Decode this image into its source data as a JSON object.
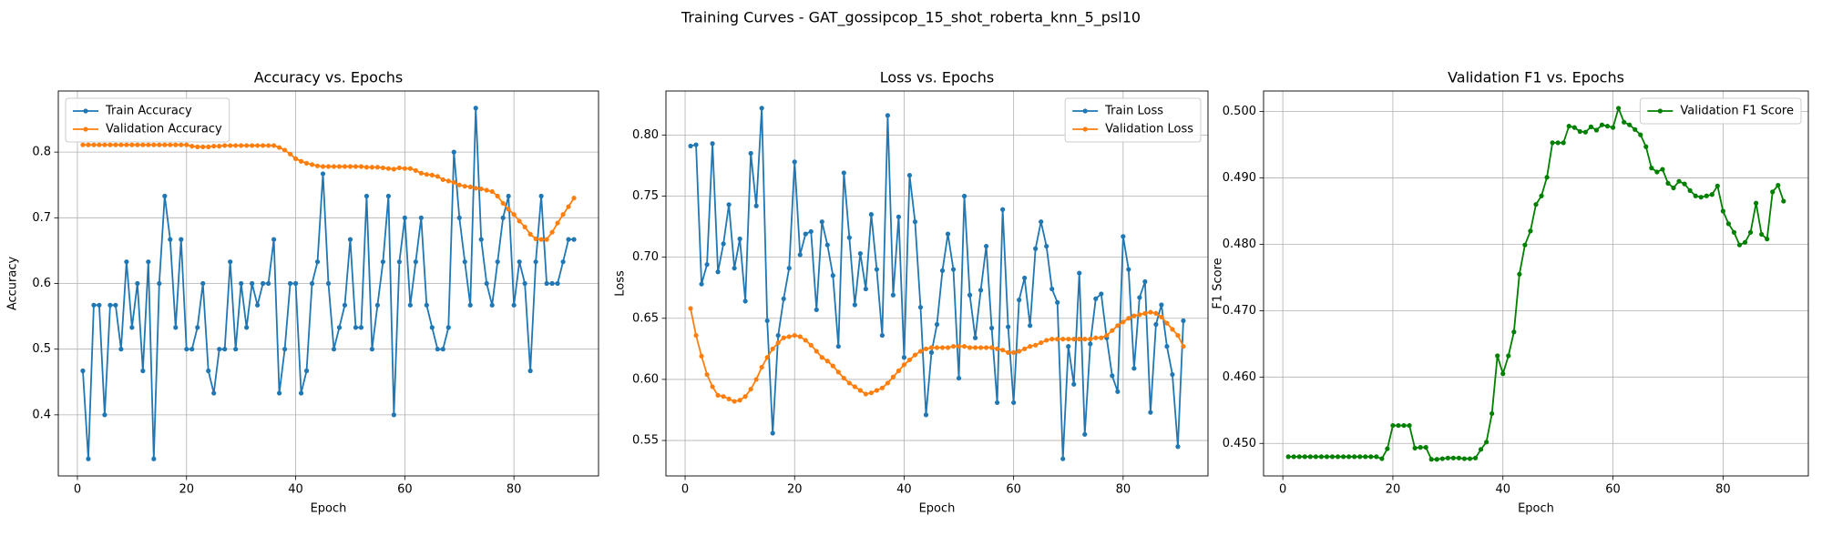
{
  "title": "Training Curves - GAT_gossipcop_15_shot_roberta_knn_5_psl10",
  "chart_data": [
    {
      "type": "line",
      "title": "Accuracy vs. Epochs",
      "xlabel": "Epoch",
      "ylabel": "Accuracy",
      "x": [
        1,
        2,
        3,
        4,
        5,
        6,
        7,
        8,
        9,
        10,
        11,
        12,
        13,
        14,
        15,
        16,
        17,
        18,
        19,
        20,
        21,
        22,
        23,
        24,
        25,
        26,
        27,
        28,
        29,
        30,
        31,
        32,
        33,
        34,
        35,
        36,
        37,
        38,
        39,
        40,
        41,
        42,
        43,
        44,
        45,
        46,
        47,
        48,
        49,
        50,
        51,
        52,
        53,
        54,
        55,
        56,
        57,
        58,
        59,
        60,
        61,
        62,
        63,
        64,
        65,
        66,
        67,
        68,
        69,
        70,
        71,
        72,
        73,
        74,
        75,
        76,
        77,
        78,
        79,
        80,
        81,
        82,
        83,
        84,
        85,
        86,
        87,
        88,
        89,
        90,
        91
      ],
      "xlim": [
        -3.5,
        95.5
      ],
      "xticks": [
        0,
        20,
        40,
        60,
        80
      ],
      "ylim": [
        0.307,
        0.893
      ],
      "yticks": [
        0.4,
        0.5,
        0.6,
        0.7,
        0.8
      ],
      "grid": true,
      "legend": "upper left",
      "series": [
        {
          "name": "Train Accuracy",
          "color": "#1f77b4",
          "values": [
            0.467,
            0.333,
            0.567,
            0.567,
            0.4,
            0.567,
            0.567,
            0.5,
            0.633,
            0.533,
            0.6,
            0.467,
            0.633,
            0.333,
            0.6,
            0.733,
            0.667,
            0.533,
            0.667,
            0.5,
            0.5,
            0.533,
            0.6,
            0.467,
            0.433,
            0.5,
            0.5,
            0.633,
            0.5,
            0.6,
            0.533,
            0.6,
            0.567,
            0.6,
            0.6,
            0.667,
            0.433,
            0.5,
            0.6,
            0.6,
            0.433,
            0.467,
            0.6,
            0.633,
            0.767,
            0.6,
            0.5,
            0.533,
            0.567,
            0.667,
            0.533,
            0.533,
            0.733,
            0.5,
            0.567,
            0.633,
            0.733,
            0.4,
            0.633,
            0.7,
            0.567,
            0.633,
            0.7,
            0.567,
            0.533,
            0.5,
            0.5,
            0.533,
            0.8,
            0.7,
            0.633,
            0.567,
            0.867,
            0.667,
            0.6,
            0.567,
            0.633,
            0.7,
            0.733,
            0.567,
            0.633,
            0.6,
            0.467,
            0.633,
            0.733,
            0.6,
            0.6,
            0.6,
            0.633,
            0.667,
            0.667
          ]
        },
        {
          "name": "Validation Accuracy",
          "color": "#ff7f0e",
          "values": [
            0.811,
            0.811,
            0.811,
            0.811,
            0.811,
            0.811,
            0.811,
            0.811,
            0.811,
            0.811,
            0.811,
            0.811,
            0.811,
            0.811,
            0.811,
            0.811,
            0.811,
            0.811,
            0.811,
            0.811,
            0.809,
            0.808,
            0.808,
            0.808,
            0.809,
            0.809,
            0.81,
            0.81,
            0.81,
            0.81,
            0.81,
            0.81,
            0.81,
            0.81,
            0.81,
            0.81,
            0.807,
            0.803,
            0.797,
            0.79,
            0.786,
            0.783,
            0.781,
            0.779,
            0.778,
            0.778,
            0.778,
            0.778,
            0.778,
            0.778,
            0.778,
            0.778,
            0.777,
            0.777,
            0.777,
            0.776,
            0.775,
            0.774,
            0.776,
            0.775,
            0.775,
            0.772,
            0.768,
            0.766,
            0.765,
            0.763,
            0.758,
            0.756,
            0.754,
            0.75,
            0.748,
            0.747,
            0.745,
            0.744,
            0.742,
            0.74,
            0.733,
            0.722,
            0.713,
            0.705,
            0.695,
            0.686,
            0.675,
            0.668,
            0.667,
            0.667,
            0.678,
            0.692,
            0.705,
            0.717,
            0.73
          ]
        }
      ]
    },
    {
      "type": "line",
      "title": "Loss vs. Epochs",
      "xlabel": "Epoch",
      "ylabel": "Loss",
      "x": [
        1,
        2,
        3,
        4,
        5,
        6,
        7,
        8,
        9,
        10,
        11,
        12,
        13,
        14,
        15,
        16,
        17,
        18,
        19,
        20,
        21,
        22,
        23,
        24,
        25,
        26,
        27,
        28,
        29,
        30,
        31,
        32,
        33,
        34,
        35,
        36,
        37,
        38,
        39,
        40,
        41,
        42,
        43,
        44,
        45,
        46,
        47,
        48,
        49,
        50,
        51,
        52,
        53,
        54,
        55,
        56,
        57,
        58,
        59,
        60,
        61,
        62,
        63,
        64,
        65,
        66,
        67,
        68,
        69,
        70,
        71,
        72,
        73,
        74,
        75,
        76,
        77,
        78,
        79,
        80,
        81,
        82,
        83,
        84,
        85,
        86,
        87,
        88,
        89,
        90,
        91
      ],
      "xlim": [
        -3.5,
        95.5
      ],
      "xticks": [
        0,
        20,
        40,
        60,
        80
      ],
      "ylim": [
        0.521,
        0.836
      ],
      "yticks": [
        0.55,
        {
          "value": 0.6,
          "label": "0.60"
        },
        0.65,
        {
          "value": 0.7,
          "label": "0.70"
        },
        0.75,
        {
          "value": 0.8,
          "label": "0.80"
        }
      ],
      "grid": true,
      "legend": "upper right",
      "series": [
        {
          "name": "Train Loss",
          "color": "#1f77b4",
          "values": [
            0.791,
            0.792,
            0.678,
            0.694,
            0.793,
            0.688,
            0.711,
            0.743,
            0.691,
            0.715,
            0.664,
            0.785,
            0.742,
            0.822,
            0.648,
            0.556,
            0.636,
            0.666,
            0.691,
            0.778,
            0.702,
            0.719,
            0.721,
            0.657,
            0.729,
            0.71,
            0.685,
            0.627,
            0.769,
            0.716,
            0.661,
            0.703,
            0.674,
            0.735,
            0.69,
            0.636,
            0.816,
            0.669,
            0.733,
            0.618,
            0.767,
            0.729,
            0.659,
            0.571,
            0.622,
            0.645,
            0.689,
            0.719,
            0.69,
            0.601,
            0.75,
            0.669,
            0.634,
            0.673,
            0.709,
            0.642,
            0.581,
            0.739,
            0.643,
            0.581,
            0.665,
            0.683,
            0.644,
            0.707,
            0.729,
            0.709,
            0.674,
            0.663,
            0.535,
            0.627,
            0.596,
            0.687,
            0.555,
            0.629,
            0.666,
            0.67,
            0.634,
            0.603,
            0.59,
            0.717,
            0.69,
            0.609,
            0.667,
            0.68,
            0.573,
            0.645,
            0.661,
            0.627,
            0.604,
            0.545,
            0.648
          ]
        },
        {
          "name": "Validation Loss",
          "color": "#ff7f0e",
          "values": [
            0.658,
            0.636,
            0.619,
            0.604,
            0.594,
            0.587,
            0.586,
            0.584,
            0.582,
            0.583,
            0.586,
            0.592,
            0.6,
            0.61,
            0.618,
            0.625,
            0.63,
            0.634,
            0.635,
            0.636,
            0.635,
            0.632,
            0.628,
            0.623,
            0.618,
            0.615,
            0.611,
            0.606,
            0.601,
            0.597,
            0.594,
            0.591,
            0.588,
            0.589,
            0.591,
            0.593,
            0.597,
            0.602,
            0.607,
            0.612,
            0.616,
            0.62,
            0.623,
            0.625,
            0.626,
            0.626,
            0.626,
            0.626,
            0.627,
            0.627,
            0.627,
            0.626,
            0.626,
            0.626,
            0.626,
            0.626,
            0.625,
            0.624,
            0.622,
            0.622,
            0.623,
            0.625,
            0.627,
            0.628,
            0.63,
            0.632,
            0.633,
            0.633,
            0.633,
            0.633,
            0.633,
            0.633,
            0.633,
            0.633,
            0.634,
            0.634,
            0.636,
            0.64,
            0.644,
            0.647,
            0.65,
            0.652,
            0.653,
            0.654,
            0.655,
            0.654,
            0.651,
            0.646,
            0.641,
            0.636,
            0.627
          ]
        }
      ]
    },
    {
      "type": "line",
      "title": "Validation F1 vs. Epochs",
      "xlabel": "Epoch",
      "ylabel": "F1 Score",
      "x": [
        1,
        2,
        3,
        4,
        5,
        6,
        7,
        8,
        9,
        10,
        11,
        12,
        13,
        14,
        15,
        16,
        17,
        18,
        19,
        20,
        21,
        22,
        23,
        24,
        25,
        26,
        27,
        28,
        29,
        30,
        31,
        32,
        33,
        34,
        35,
        36,
        37,
        38,
        39,
        40,
        41,
        42,
        43,
        44,
        45,
        46,
        47,
        48,
        49,
        50,
        51,
        52,
        53,
        54,
        55,
        56,
        57,
        58,
        59,
        60,
        61,
        62,
        63,
        64,
        65,
        66,
        67,
        68,
        69,
        70,
        71,
        72,
        73,
        74,
        75,
        76,
        77,
        78,
        79,
        80,
        81,
        82,
        83,
        84,
        85,
        86,
        87,
        88,
        89,
        90,
        91
      ],
      "xlim": [
        -3.5,
        95.5
      ],
      "xticks": [
        0,
        20,
        40,
        60,
        80
      ],
      "ylim": [
        0.4451,
        0.5031
      ],
      "yticks": [
        {
          "value": 0.45,
          "label": "0.450"
        },
        {
          "value": 0.46,
          "label": "0.460"
        },
        {
          "value": 0.47,
          "label": "0.470"
        },
        {
          "value": 0.48,
          "label": "0.480"
        },
        {
          "value": 0.49,
          "label": "0.490"
        },
        {
          "value": 0.5,
          "label": "0.500"
        }
      ],
      "grid": true,
      "legend": "upper right",
      "series": [
        {
          "name": "Validation F1 Score",
          "color": "#008000",
          "values": [
            0.448,
            0.448,
            0.448,
            0.448,
            0.448,
            0.448,
            0.448,
            0.448,
            0.448,
            0.448,
            0.448,
            0.448,
            0.448,
            0.448,
            0.448,
            0.448,
            0.448,
            0.4477,
            0.4492,
            0.4527,
            0.4527,
            0.4527,
            0.4527,
            0.4493,
            0.4494,
            0.4494,
            0.4476,
            0.4476,
            0.4477,
            0.4478,
            0.4478,
            0.4478,
            0.4477,
            0.4477,
            0.4478,
            0.4491,
            0.4502,
            0.4545,
            0.4632,
            0.4605,
            0.4632,
            0.4668,
            0.4755,
            0.4799,
            0.482,
            0.486,
            0.4873,
            0.4901,
            0.4953,
            0.4953,
            0.4953,
            0.4978,
            0.4976,
            0.497,
            0.4969,
            0.4977,
            0.4972,
            0.498,
            0.4978,
            0.4976,
            0.5005,
            0.4984,
            0.498,
            0.4973,
            0.4965,
            0.4947,
            0.4915,
            0.4909,
            0.4913,
            0.4892,
            0.4885,
            0.4895,
            0.4891,
            0.4881,
            0.4873,
            0.4871,
            0.4873,
            0.4875,
            0.4888,
            0.485,
            0.4831,
            0.4818,
            0.4799,
            0.4803,
            0.4818,
            0.4862,
            0.4815,
            0.4808,
            0.4879,
            0.4889,
            0.4865
          ]
        }
      ]
    }
  ]
}
